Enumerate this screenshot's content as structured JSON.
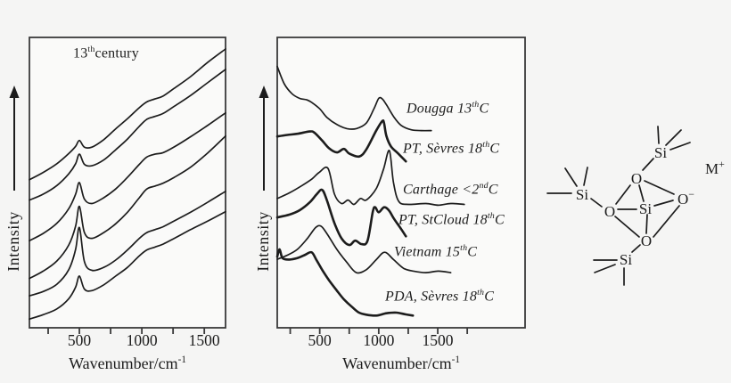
{
  "figure": {
    "background": "#f5f5f4",
    "ink": "#1c1c1c",
    "panel_fill": "#fafaf9",
    "border": "#3a3a3a"
  },
  "left_panel": {
    "annotation": {
      "pre": "13",
      "sup": "th",
      "post": "century"
    },
    "y_axis_label": "Intensity",
    "x_axis_title": {
      "pre": "Wavenumber/cm",
      "sup": "-1"
    }
  },
  "middle_panel": {
    "y_axis_label": "Intensity",
    "x_axis_title": {
      "pre": "Wavenumber/cm",
      "sup": "-1"
    },
    "curve_labels": [
      {
        "pre": "Dougga 13",
        "sup": "th",
        "post": "C"
      },
      {
        "pre": "PT, Sèvres  18",
        "sup": "th",
        "post": "C"
      },
      {
        "pre": "Carthage  <2",
        "sup": "nd",
        "post": "C"
      },
      {
        "pre": "PT, StCloud 18",
        "sup": "th",
        "post": "C"
      },
      {
        "pre": "Vietnam 15",
        "sup": "th",
        "post": "C"
      },
      {
        "pre": "PDA, Sèvres 18",
        "sup": "th",
        "post": "C"
      }
    ]
  },
  "structure": {
    "si_label": "Si",
    "o_label": "O",
    "o_minus": {
      "base": "O",
      "sup": "−"
    },
    "cation": {
      "base": "M",
      "sup": "+"
    }
  },
  "chart_data": [
    {
      "type": "line",
      "title": "13th century",
      "xlabel": "Wavenumber/cm-1",
      "ylabel": "Intensity",
      "x_range": [
        100,
        1670
      ],
      "x_ticks": [
        250,
        500,
        750,
        1000,
        1250,
        1500
      ],
      "x_label_ticks": [
        500,
        1000,
        1500
      ],
      "x_tick_labels": [
        "500",
        "1000",
        "1500"
      ],
      "grid": false,
      "legend": "none",
      "note": "Six stacked Raman spectra of 13th-century glazes; relative intensity 0-1 of panel height; peaks near 500 and 1050 cm-1, rising background",
      "series": [
        {
          "name": "spectrum-1",
          "lw": 1.7,
          "points": [
            [
              100,
              0.51
            ],
            [
              210,
              0.535
            ],
            [
              320,
              0.565
            ],
            [
              415,
              0.6
            ],
            [
              470,
              0.625
            ],
            [
              500,
              0.645
            ],
            [
              540,
              0.622
            ],
            [
              600,
              0.622
            ],
            [
              695,
              0.648
            ],
            [
              790,
              0.685
            ],
            [
              885,
              0.72
            ],
            [
              980,
              0.758
            ],
            [
              1040,
              0.778
            ],
            [
              1105,
              0.788
            ],
            [
              1170,
              0.798
            ],
            [
              1260,
              0.825
            ],
            [
              1390,
              0.865
            ],
            [
              1530,
              0.915
            ],
            [
              1670,
              0.96
            ]
          ]
        },
        {
          "name": "spectrum-2",
          "lw": 1.7,
          "points": [
            [
              100,
              0.44
            ],
            [
              210,
              0.46
            ],
            [
              320,
              0.49
            ],
            [
              415,
              0.53
            ],
            [
              470,
              0.565
            ],
            [
              500,
              0.598
            ],
            [
              540,
              0.563
            ],
            [
              600,
              0.558
            ],
            [
              695,
              0.578
            ],
            [
              790,
              0.613
            ],
            [
              885,
              0.65
            ],
            [
              980,
              0.694
            ],
            [
              1040,
              0.718
            ],
            [
              1105,
              0.728
            ],
            [
              1170,
              0.738
            ],
            [
              1260,
              0.763
            ],
            [
              1390,
              0.8
            ],
            [
              1530,
              0.845
            ],
            [
              1670,
              0.89
            ]
          ]
        },
        {
          "name": "spectrum-3",
          "lw": 1.7,
          "points": [
            [
              100,
              0.3
            ],
            [
              210,
              0.325
            ],
            [
              320,
              0.36
            ],
            [
              415,
              0.41
            ],
            [
              470,
              0.46
            ],
            [
              500,
              0.5
            ],
            [
              540,
              0.443
            ],
            [
              600,
              0.428
            ],
            [
              695,
              0.448
            ],
            [
              790,
              0.478
            ],
            [
              885,
              0.518
            ],
            [
              980,
              0.563
            ],
            [
              1040,
              0.588
            ],
            [
              1105,
              0.598
            ],
            [
              1170,
              0.603
            ],
            [
              1260,
              0.623
            ],
            [
              1390,
              0.658
            ],
            [
              1530,
              0.698
            ],
            [
              1670,
              0.74
            ]
          ]
        },
        {
          "name": "spectrum-4",
          "lw": 1.7,
          "points": [
            [
              100,
              0.17
            ],
            [
              210,
              0.195
            ],
            [
              320,
              0.23
            ],
            [
              415,
              0.285
            ],
            [
              470,
              0.35
            ],
            [
              500,
              0.418
            ],
            [
              540,
              0.328
            ],
            [
              600,
              0.308
            ],
            [
              695,
              0.328
            ],
            [
              790,
              0.358
            ],
            [
              885,
              0.398
            ],
            [
              980,
              0.448
            ],
            [
              1040,
              0.478
            ],
            [
              1105,
              0.488
            ],
            [
              1170,
              0.498
            ],
            [
              1260,
              0.518
            ],
            [
              1390,
              0.553
            ],
            [
              1530,
              0.603
            ],
            [
              1670,
              0.66
            ]
          ]
        },
        {
          "name": "spectrum-5",
          "lw": 1.7,
          "points": [
            [
              100,
              0.11
            ],
            [
              210,
              0.125
            ],
            [
              320,
              0.15
            ],
            [
              415,
              0.2
            ],
            [
              470,
              0.27
            ],
            [
              500,
              0.345
            ],
            [
              540,
              0.228
            ],
            [
              600,
              0.198
            ],
            [
              695,
              0.208
            ],
            [
              790,
              0.233
            ],
            [
              885,
              0.268
            ],
            [
              980,
              0.308
            ],
            [
              1040,
              0.328
            ],
            [
              1105,
              0.338
            ],
            [
              1170,
              0.348
            ],
            [
              1260,
              0.368
            ],
            [
              1390,
              0.398
            ],
            [
              1530,
              0.433
            ],
            [
              1670,
              0.47
            ]
          ]
        },
        {
          "name": "spectrum-6",
          "lw": 1.7,
          "points": [
            [
              100,
              0.03
            ],
            [
              210,
              0.045
            ],
            [
              320,
              0.065
            ],
            [
              415,
              0.1
            ],
            [
              470,
              0.14
            ],
            [
              500,
              0.178
            ],
            [
              540,
              0.133
            ],
            [
              600,
              0.128
            ],
            [
              695,
              0.148
            ],
            [
              790,
              0.178
            ],
            [
              885,
              0.208
            ],
            [
              980,
              0.248
            ],
            [
              1040,
              0.268
            ],
            [
              1105,
              0.278
            ],
            [
              1170,
              0.288
            ],
            [
              1260,
              0.308
            ],
            [
              1390,
              0.338
            ],
            [
              1530,
              0.368
            ],
            [
              1670,
              0.4
            ]
          ]
        }
      ]
    },
    {
      "type": "line",
      "title": "",
      "xlabel": "Wavenumber/cm-1",
      "ylabel": "Intensity",
      "x_range": [
        140,
        2240
      ],
      "x_ticks": [
        250,
        500,
        750,
        1000,
        1250,
        1500,
        1750
      ],
      "x_label_ticks": [
        500,
        1000,
        1500
      ],
      "x_tick_labels": [
        "500",
        "1000",
        "1500"
      ],
      "grid": false,
      "legend": "inline-labels",
      "note": "Six offset Raman spectra of glazed ceramics of different provenance/age",
      "series": [
        {
          "name": "Dougga 13thC",
          "lw": 1.7,
          "points": [
            [
              140,
              0.9
            ],
            [
              200,
              0.84
            ],
            [
              265,
              0.806
            ],
            [
              330,
              0.79
            ],
            [
              390,
              0.785
            ],
            [
              435,
              0.775
            ],
            [
              500,
              0.754
            ],
            [
              560,
              0.725
            ],
            [
              645,
              0.7
            ],
            [
              730,
              0.686
            ],
            [
              810,
              0.686
            ],
            [
              895,
              0.705
            ],
            [
              960,
              0.755
            ],
            [
              1000,
              0.79
            ],
            [
              1030,
              0.788
            ],
            [
              1065,
              0.768
            ],
            [
              1130,
              0.725
            ],
            [
              1190,
              0.697
            ],
            [
              1275,
              0.682
            ],
            [
              1360,
              0.679
            ],
            [
              1445,
              0.679
            ]
          ]
        },
        {
          "name": "PT, Sevres 18thC",
          "lw": 2.6,
          "points": [
            [
              140,
              0.659
            ],
            [
              225,
              0.664
            ],
            [
              310,
              0.668
            ],
            [
              415,
              0.676
            ],
            [
              455,
              0.672
            ],
            [
              520,
              0.645
            ],
            [
              580,
              0.618
            ],
            [
              645,
              0.604
            ],
            [
              705,
              0.616
            ],
            [
              750,
              0.6
            ],
            [
              835,
              0.59
            ],
            [
              895,
              0.614
            ],
            [
              980,
              0.68
            ],
            [
              1030,
              0.712
            ],
            [
              1045,
              0.705
            ],
            [
              1065,
              0.66
            ],
            [
              1105,
              0.624
            ],
            [
              1165,
              0.6
            ],
            [
              1230,
              0.573
            ]
          ]
        },
        {
          "name": "Carthage <2ndC",
          "lw": 1.7,
          "points": [
            [
              140,
              0.445
            ],
            [
              245,
              0.465
            ],
            [
              350,
              0.49
            ],
            [
              435,
              0.513
            ],
            [
              495,
              0.535
            ],
            [
              570,
              0.549
            ],
            [
              625,
              0.46
            ],
            [
              685,
              0.428
            ],
            [
              740,
              0.44
            ],
            [
              790,
              0.425
            ],
            [
              845,
              0.445
            ],
            [
              895,
              0.44
            ],
            [
              980,
              0.48
            ],
            [
              1040,
              0.545
            ],
            [
              1090,
              0.61
            ],
            [
              1125,
              0.5
            ],
            [
              1170,
              0.435
            ],
            [
              1255,
              0.425
            ],
            [
              1400,
              0.428
            ],
            [
              1505,
              0.422
            ],
            [
              1610,
              0.428
            ],
            [
              1725,
              0.425
            ]
          ]
        },
        {
          "name": "PT, StCloud 18thC",
          "lw": 2.6,
          "points": [
            [
              140,
              0.38
            ],
            [
              245,
              0.39
            ],
            [
              330,
              0.405
            ],
            [
              415,
              0.432
            ],
            [
              475,
              0.46
            ],
            [
              520,
              0.475
            ],
            [
              560,
              0.44
            ],
            [
              625,
              0.36
            ],
            [
              685,
              0.308
            ],
            [
              750,
              0.285
            ],
            [
              800,
              0.3
            ],
            [
              855,
              0.288
            ],
            [
              905,
              0.3
            ],
            [
              950,
              0.4
            ],
            [
              970,
              0.415
            ],
            [
              1000,
              0.398
            ],
            [
              1045,
              0.415
            ],
            [
              1085,
              0.405
            ],
            [
              1130,
              0.375
            ],
            [
              1190,
              0.34
            ],
            [
              1230,
              0.315
            ]
          ]
        },
        {
          "name": "Vietnam 15thC",
          "lw": 1.7,
          "points": [
            [
              140,
              0.236
            ],
            [
              225,
              0.25
            ],
            [
              310,
              0.27
            ],
            [
              390,
              0.305
            ],
            [
              465,
              0.345
            ],
            [
              510,
              0.35
            ],
            [
              560,
              0.325
            ],
            [
              645,
              0.27
            ],
            [
              730,
              0.225
            ],
            [
              810,
              0.19
            ],
            [
              895,
              0.2
            ],
            [
              980,
              0.235
            ],
            [
              1050,
              0.26
            ],
            [
              1125,
              0.235
            ],
            [
              1210,
              0.205
            ],
            [
              1295,
              0.195
            ],
            [
              1400,
              0.19
            ],
            [
              1505,
              0.195
            ],
            [
              1610,
              0.19
            ]
          ]
        },
        {
          "name": "PDA, Sevres 18thC",
          "lw": 2.6,
          "points": [
            [
              140,
              0.245
            ],
            [
              160,
              0.27
            ],
            [
              185,
              0.24
            ],
            [
              245,
              0.235
            ],
            [
              310,
              0.24
            ],
            [
              370,
              0.25
            ],
            [
              430,
              0.26
            ],
            [
              470,
              0.235
            ],
            [
              520,
              0.2
            ],
            [
              580,
              0.163
            ],
            [
              645,
              0.128
            ],
            [
              705,
              0.098
            ],
            [
              770,
              0.073
            ],
            [
              830,
              0.053
            ],
            [
              895,
              0.045
            ],
            [
              980,
              0.042
            ],
            [
              1065,
              0.05
            ],
            [
              1150,
              0.052
            ],
            [
              1230,
              0.046
            ],
            [
              1290,
              0.042
            ]
          ]
        }
      ]
    }
  ]
}
